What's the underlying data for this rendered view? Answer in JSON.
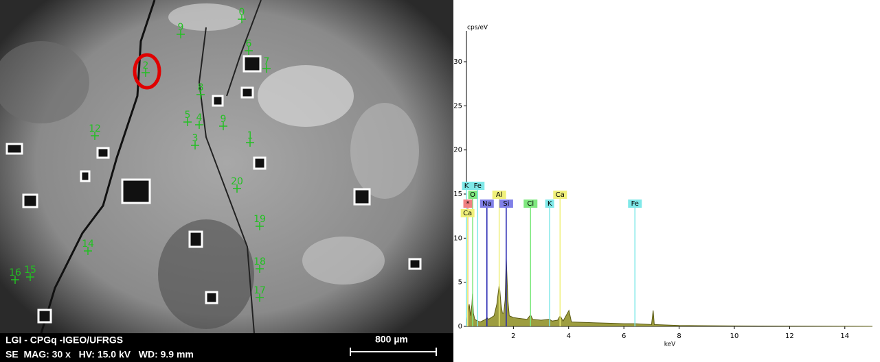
{
  "sem_image": {
    "footer_line1": "LGI - CPGq -IGEO/UFRGS",
    "footer_line2": "SE  MAG: 30 x   HV: 15.0 kV   WD: 9.9 mm",
    "scale_bar": "800 µm",
    "point_labels": [
      "9",
      "0",
      "6",
      "7",
      "2",
      "8",
      "5",
      "4",
      "9",
      "3",
      "1",
      "12",
      "20",
      "19",
      "14",
      "16",
      "15",
      "18",
      "17"
    ]
  },
  "chart_data": {
    "type": "spectrum",
    "y_unit_label": "cps/eV",
    "x_label": "keV",
    "color": "#8c8c1e",
    "x": [
      0.3,
      0.35,
      0.4,
      0.45,
      0.5,
      0.52,
      0.55,
      0.6,
      0.7,
      0.8,
      1.0,
      1.04,
      1.1,
      1.3,
      1.4,
      1.49,
      1.55,
      1.6,
      1.65,
      1.7,
      1.74,
      1.8,
      1.85,
      2.0,
      2.2,
      2.5,
      2.62,
      2.7,
      3.0,
      3.31,
      3.4,
      3.6,
      3.69,
      3.8,
      4.01,
      4.1,
      5,
      6,
      6.4,
      7.0,
      7.06,
      7.1,
      8,
      10,
      15
    ],
    "values": [
      0,
      1.5,
      2.5,
      1.2,
      2.5,
      3.7,
      1.5,
      0.8,
      0.6,
      0.5,
      0.8,
      1.0,
      0.8,
      1.2,
      2.5,
      4.8,
      2.5,
      1.5,
      1.5,
      3,
      7.8,
      3,
      1.2,
      1.0,
      0.9,
      0.8,
      1.3,
      0.8,
      0.7,
      0.8,
      0.6,
      0.7,
      1.2,
      0.6,
      1.8,
      0.5,
      0.4,
      0.3,
      0.3,
      0.2,
      1.8,
      0.2,
      0.1,
      0.05,
      0
    ],
    "element_lines": [
      {
        "label": "K",
        "energy": 0.3,
        "color": "#7fe8e8"
      },
      {
        "label": "Fe",
        "energy": 0.705,
        "color": "#7fe8e8"
      },
      {
        "label": "O",
        "energy": 0.525,
        "color": "#7fe87f"
      },
      {
        "label": "Al",
        "energy": 1.486,
        "color": "#f0f07a"
      },
      {
        "label": "Ca",
        "energy": 3.69,
        "color": "#f0f07a"
      },
      {
        "label": "*",
        "energy": 0.35,
        "color": "#f08080"
      },
      {
        "label": "Na",
        "energy": 1.041,
        "color": "#8080e8"
      },
      {
        "label": "Si",
        "energy": 1.74,
        "color": "#8080e8"
      },
      {
        "label": "Cl",
        "energy": 2.62,
        "color": "#7fe87f"
      },
      {
        "label": "K",
        "energy": 3.313,
        "color": "#7fe8e8"
      },
      {
        "label": "Fe",
        "energy": 6.4,
        "color": "#7fe8e8"
      },
      {
        "label": "Ca",
        "energy": 0.341,
        "color": "#f0f07a"
      }
    ],
    "xlim": [
      0.3,
      15
    ],
    "ylim": [
      0,
      33.5
    ],
    "xticks": [
      2,
      4,
      6,
      8,
      10,
      12,
      14
    ],
    "yticks": [
      0,
      5,
      10,
      15,
      20,
      25,
      30
    ]
  }
}
